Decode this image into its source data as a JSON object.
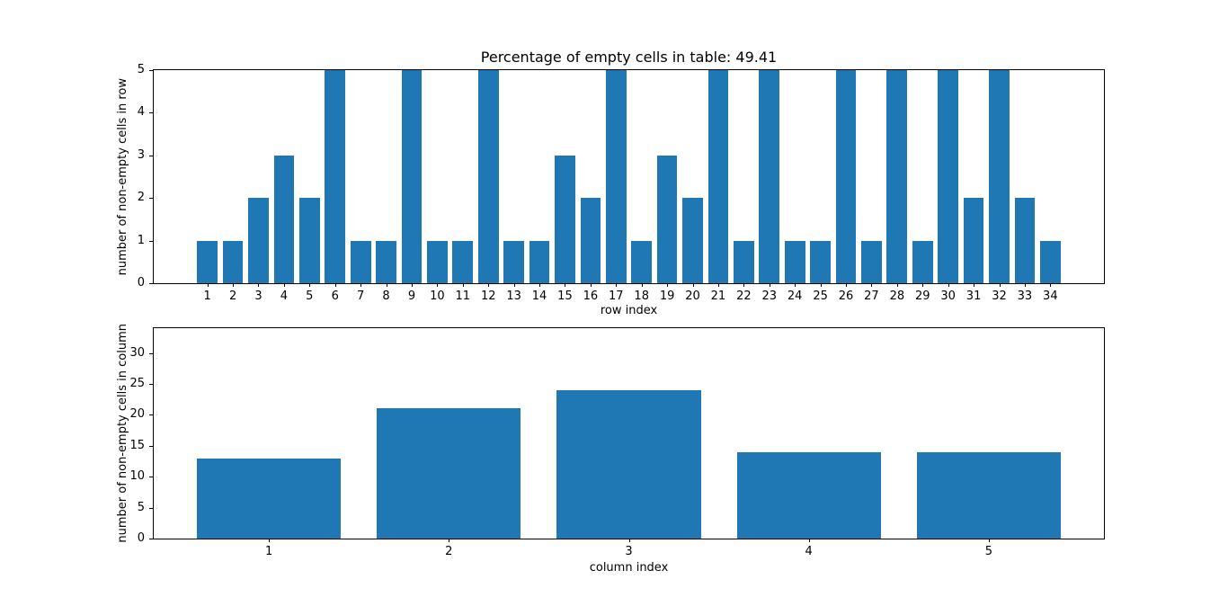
{
  "figure": {
    "background": "#ffffff",
    "bar_color": "#1f77b4"
  },
  "chart_data": [
    {
      "type": "bar",
      "title": "Percentage of empty cells in table: 49.41",
      "xlabel": "row index",
      "ylabel": "number of non-empty cells in row",
      "categories": [
        1,
        2,
        3,
        4,
        5,
        6,
        7,
        8,
        9,
        10,
        11,
        12,
        13,
        14,
        15,
        16,
        17,
        18,
        19,
        20,
        21,
        22,
        23,
        24,
        25,
        26,
        27,
        28,
        29,
        30,
        31,
        32,
        33,
        34
      ],
      "values": [
        1,
        1,
        2,
        3,
        2,
        5,
        1,
        1,
        5,
        1,
        1,
        5,
        1,
        1,
        3,
        2,
        5,
        1,
        3,
        2,
        5,
        1,
        5,
        1,
        1,
        5,
        1,
        5,
        1,
        5,
        2,
        5,
        2,
        1
      ],
      "ylim": [
        0,
        5
      ],
      "yticks": [
        0,
        1,
        2,
        3,
        4,
        5
      ],
      "xlim": [
        -1.1,
        36.1
      ],
      "bar_width": 0.8,
      "grid": false,
      "legend": "none"
    },
    {
      "type": "bar",
      "title": "",
      "xlabel": "column index",
      "ylabel": "number of non-empty cells in column",
      "categories": [
        1,
        2,
        3,
        4,
        5
      ],
      "values": [
        13,
        21,
        24,
        14,
        14
      ],
      "ylim": [
        0,
        34
      ],
      "yticks": [
        0,
        5,
        10,
        15,
        20,
        25,
        30
      ],
      "xlim": [
        0.36,
        5.64
      ],
      "bar_width": 0.8,
      "grid": false,
      "legend": "none"
    }
  ]
}
